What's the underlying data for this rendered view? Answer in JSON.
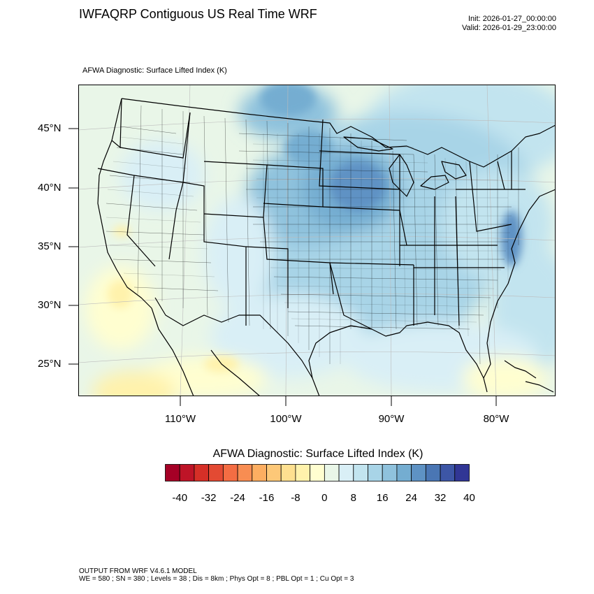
{
  "title": "IWFAQRP Contiguous US Real Time WRF",
  "init": "Init: 2026-01-27_00:00:00",
  "valid": "Valid: 2026-01-29_23:00:00",
  "subtitle": "AFWA Diagnostic: Surface Lifted Index   (K)",
  "lat_labels": [
    "45°N",
    "40°N",
    "35°N",
    "30°N",
    "25°N"
  ],
  "lon_labels": [
    "110°W",
    "100°W",
    "90°W",
    "80°W"
  ],
  "colorbar": {
    "title": "AFWA Diagnostic: Surface Lifted Index  (K)",
    "tick_labels": [
      "-40",
      "-32",
      "-24",
      "-16",
      "-8",
      "0",
      "8",
      "16",
      "24",
      "32",
      "40"
    ],
    "colors": [
      "#a50026",
      "#be1427",
      "#d62f27",
      "#e34a33",
      "#f46d43",
      "#f88d52",
      "#fdae61",
      "#fdc878",
      "#fee090",
      "#fff2ac",
      "#fffed0",
      "#e9f6e8",
      "#d9eff6",
      "#c2e4ef",
      "#a8d4e7",
      "#8fc2dd",
      "#74add1",
      "#5e92c4",
      "#4a76b4",
      "#3d56a6",
      "#313695"
    ]
  },
  "footer": {
    "line1": "OUTPUT FROM WRF V4.6.1 MODEL",
    "line2": "WE = 580 ; SN = 380 ; Levels = 38 ; Dis = 8km ; Phys Opt = 8 ; PBL Opt = 1 ; Cu Opt = 3"
  }
}
